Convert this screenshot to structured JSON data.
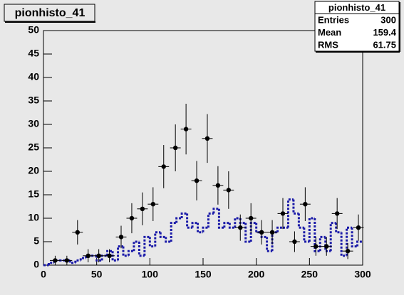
{
  "chart_data": {
    "type": "histogram",
    "title": "pionhisto_41",
    "stats": {
      "title": "pionhisto_41",
      "rows": [
        [
          "Entries",
          300
        ],
        [
          "Mean",
          159.4
        ],
        [
          "RMS",
          61.75
        ]
      ]
    },
    "xlim": [
      0,
      300
    ],
    "xticks": [
      0,
      50,
      100,
      150,
      200,
      250,
      300
    ],
    "ylim": [
      0,
      50
    ],
    "yticks": [
      0,
      5,
      10,
      15,
      20,
      25,
      30,
      35,
      40,
      45,
      50
    ],
    "points": {
      "color": "#000000",
      "x": [
        11,
        22,
        32,
        42,
        52,
        62,
        73,
        83,
        93,
        103,
        113,
        124,
        134,
        144,
        154,
        164,
        174,
        185,
        195,
        205,
        215,
        225,
        236,
        246,
        256,
        266,
        276,
        286,
        296
      ],
      "values": [
        1,
        1,
        7,
        2,
        2,
        2,
        6,
        10,
        12,
        13,
        21,
        25,
        29,
        18,
        27,
        17,
        16,
        8,
        10,
        7,
        7,
        11,
        5,
        13,
        4,
        4,
        11,
        3,
        8
      ],
      "errors": [
        1,
        1,
        2.6,
        1.4,
        1.4,
        1.4,
        2.4,
        3.2,
        3.5,
        3.6,
        4.6,
        5,
        5.4,
        4.2,
        5.2,
        4.1,
        4,
        2.8,
        3.2,
        2.6,
        2.6,
        3.3,
        2.2,
        3.6,
        2,
        2,
        3.3,
        1.7,
        2.8
      ]
    },
    "hist": {
      "color": "#1a1aa8",
      "bins": [
        0,
        5,
        10,
        15,
        20,
        25,
        30,
        35,
        40,
        45,
        50,
        55,
        60,
        65,
        70,
        75,
        80,
        85,
        90,
        95,
        100,
        105,
        110,
        115,
        120,
        125,
        130,
        135,
        140,
        145,
        150,
        155,
        160,
        165,
        170,
        175,
        180,
        185,
        190,
        195,
        200,
        205,
        210,
        215,
        220,
        225,
        230,
        235,
        240,
        245,
        250,
        255,
        260,
        265,
        270,
        275,
        280,
        285,
        290,
        295,
        300
      ],
      "counts": [
        0,
        0.5,
        1,
        1,
        1,
        0.5,
        1,
        1.5,
        2,
        2,
        1,
        2,
        3,
        1,
        4,
        2,
        3,
        5,
        2,
        6,
        4,
        7,
        6,
        5,
        9,
        10,
        11,
        8,
        9,
        7,
        8,
        11,
        12,
        8,
        9,
        8,
        10,
        9,
        5,
        9,
        7,
        6,
        3,
        7,
        8,
        8,
        14,
        11,
        8,
        5,
        10,
        3,
        6,
        3,
        9,
        7,
        2,
        8,
        4,
        5
      ]
    }
  }
}
